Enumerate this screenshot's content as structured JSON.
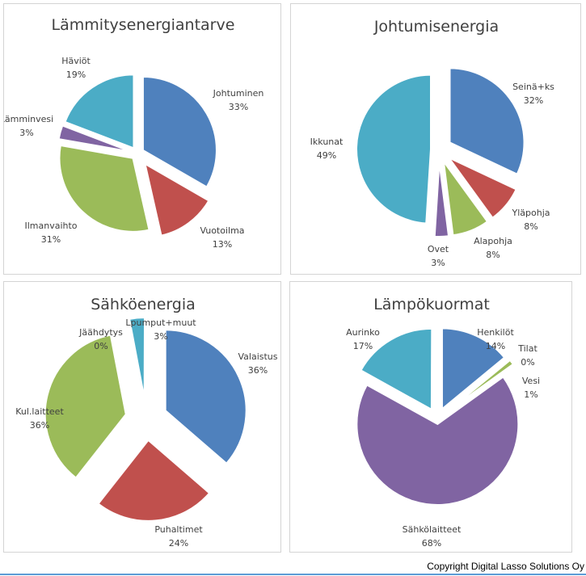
{
  "chart_data": [
    {
      "type": "pie",
      "title": "Lämmitysenergiantarve",
      "slices": [
        {
          "label": "Johtuminen",
          "value": 33,
          "display": "33%",
          "color": "#4f81bd"
        },
        {
          "label": "Vuotoilma",
          "value": 13,
          "display": "13%",
          "color": "#c0504d"
        },
        {
          "label": "Ilmanvaihto",
          "value": 31,
          "display": "31%",
          "color": "#9bbb59"
        },
        {
          "label": "Lämminvesi",
          "value": 3,
          "display": "3%",
          "color": "#8064a2"
        },
        {
          "label": "Häviöt",
          "value": 19,
          "display": "19%",
          "color": "#4bacc6"
        }
      ]
    },
    {
      "type": "pie",
      "title": "Johtumisenergia",
      "slices": [
        {
          "label": "Seinä+ks",
          "value": 32,
          "display": "32%",
          "color": "#4f81bd"
        },
        {
          "label": "Yläpohja",
          "value": 8,
          "display": "8%",
          "color": "#c0504d"
        },
        {
          "label": "Alapohja",
          "value": 8,
          "display": "8%",
          "color": "#9bbb59"
        },
        {
          "label": "Ovet",
          "value": 3,
          "display": "3%",
          "color": "#8064a2"
        },
        {
          "label": "Ikkunat",
          "value": 49,
          "display": "49%",
          "color": "#4bacc6"
        }
      ]
    },
    {
      "type": "pie",
      "title": "Sähköenergia",
      "slices": [
        {
          "label": "Valaistus",
          "value": 36,
          "display": "36%",
          "color": "#4f81bd"
        },
        {
          "label": "Puhaltimet",
          "value": 24,
          "display": "24%",
          "color": "#c0504d"
        },
        {
          "label": "Kul.laitteet",
          "value": 36,
          "display": "36%",
          "color": "#9bbb59"
        },
        {
          "label": "Jäähdytys",
          "value": 0,
          "display": "0%",
          "color": "#8064a2"
        },
        {
          "label": "Lpumput+muut",
          "value": 3,
          "display": "3%",
          "color": "#4bacc6"
        }
      ]
    },
    {
      "type": "pie",
      "title": "Lämpökuormat",
      "slices": [
        {
          "label": "Henkilöt",
          "value": 14,
          "display": "14%",
          "color": "#4f81bd"
        },
        {
          "label": "Tilat",
          "value": 0,
          "display": "0%",
          "color": "#c0504d"
        },
        {
          "label": "Vesi",
          "value": 1,
          "display": "1%",
          "color": "#9bbb59"
        },
        {
          "label": "Sähkölaitteet",
          "value": 68,
          "display": "68%",
          "color": "#8064a2"
        },
        {
          "label": "Aurinko",
          "value": 17,
          "display": "17%",
          "color": "#4bacc6"
        }
      ]
    }
  ],
  "footer": {
    "copyright": "Copyright Digital Lasso Solutions Oy",
    "rule_color": "#5b9bd5"
  }
}
